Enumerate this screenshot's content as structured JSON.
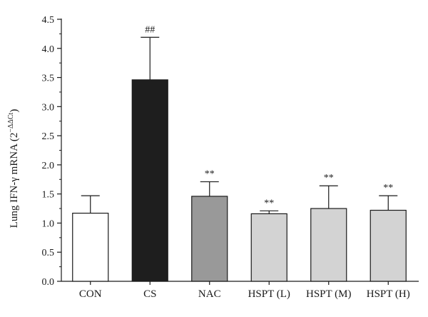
{
  "chart_data": {
    "type": "bar",
    "categories": [
      "CON",
      "CS",
      "NAC",
      "HSPT (L)",
      "HSPT (M)",
      "HSPT (H)"
    ],
    "values": [
      1.17,
      3.46,
      1.46,
      1.16,
      1.25,
      1.22
    ],
    "error_upper": [
      1.47,
      4.19,
      1.71,
      1.21,
      1.64,
      1.47
    ],
    "significance": [
      "",
      "##",
      "**",
      "**",
      "**",
      "**"
    ],
    "bar_colors": [
      "#ffffff",
      "#1e1e1e",
      "#999999",
      "#d3d3d3",
      "#d3d3d3",
      "#d3d3d3"
    ],
    "ylabel_main": "Lung IFN-γ mRNA (2",
    "ylabel_sup": "−ΔΔCt",
    "ylabel_close": ")",
    "ylim": [
      0,
      4.5
    ],
    "yticks": [
      "0.0",
      "0.5",
      "1.0",
      "1.5",
      "2.0",
      "2.5",
      "3.0",
      "3.5",
      "4.0",
      "4.5"
    ],
    "grid": false,
    "legend": false
  }
}
